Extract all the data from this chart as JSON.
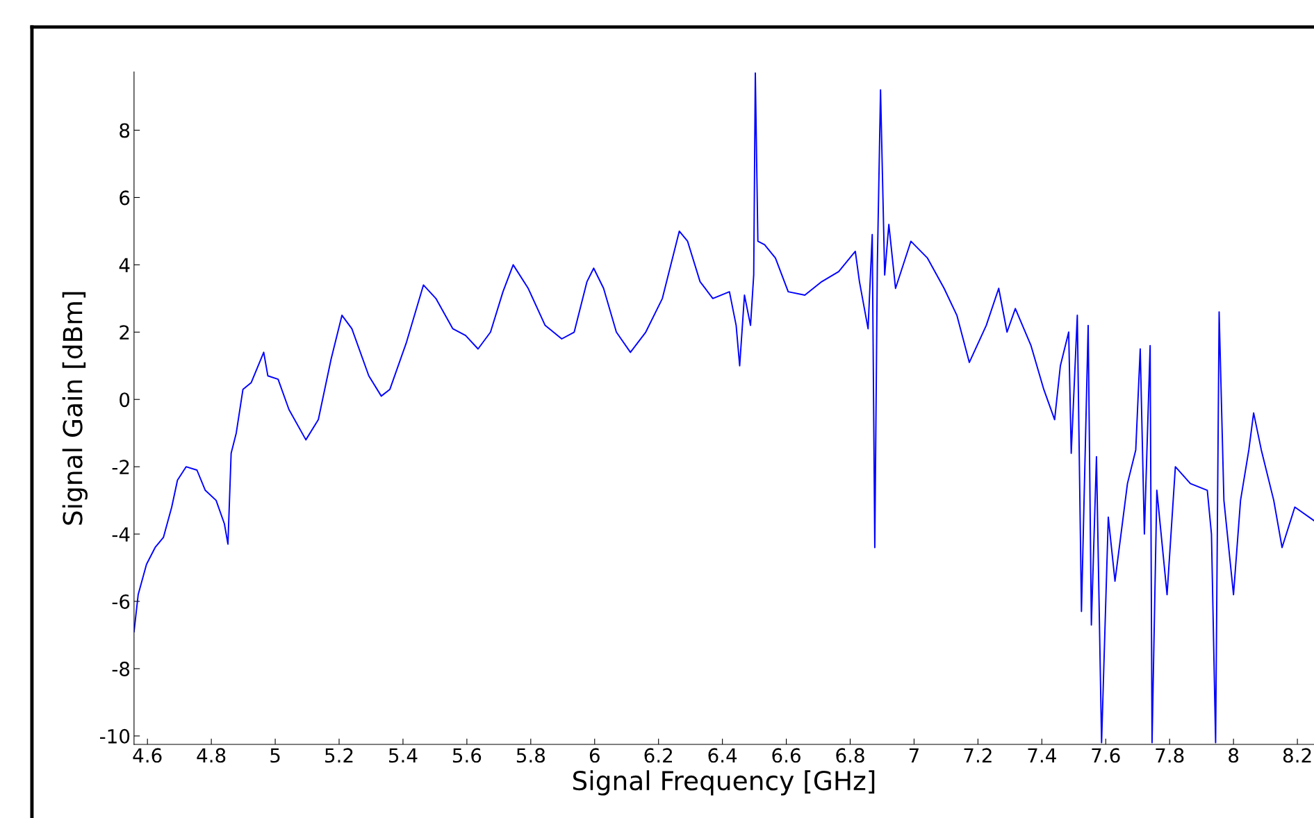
{
  "chart_data": {
    "type": "line",
    "xlabel": "Signal Frequency [GHz]",
    "ylabel": "Signal Gain [dBm]",
    "xlim": [
      4.558,
      8.252
    ],
    "ylim": [
      -10.25,
      9.73
    ],
    "xticks": [
      4.6,
      4.8,
      5,
      5.2,
      5.4,
      5.6,
      5.8,
      6,
      6.2,
      6.4,
      6.6,
      6.8,
      7,
      7.2,
      7.4,
      7.6,
      7.8,
      8,
      8.2
    ],
    "yticks": [
      -10,
      -8,
      -6,
      -4,
      -2,
      0,
      2,
      4,
      6,
      8
    ],
    "grid": false,
    "marker": "none",
    "line_style": "solid",
    "series": [
      {
        "color": "#0000ff",
        "x": [
          4.558,
          4.571,
          4.597,
          4.624,
          4.65,
          4.676,
          4.694,
          4.721,
          4.755,
          4.781,
          4.815,
          4.841,
          4.852,
          4.862,
          4.878,
          4.899,
          4.925,
          4.964,
          4.977,
          5.009,
          5.043,
          5.096,
          5.135,
          5.175,
          5.209,
          5.24,
          5.293,
          5.332,
          5.359,
          5.411,
          5.464,
          5.503,
          5.556,
          5.596,
          5.635,
          5.674,
          5.713,
          5.745,
          5.792,
          5.845,
          5.897,
          5.936,
          5.976,
          5.997,
          6.028,
          6.068,
          6.112,
          6.16,
          6.212,
          6.265,
          6.291,
          6.33,
          6.37,
          6.422,
          6.443,
          6.454,
          6.469,
          6.488,
          6.498,
          6.503,
          6.511,
          6.532,
          6.566,
          6.606,
          6.658,
          6.711,
          6.764,
          6.816,
          6.829,
          6.856,
          6.869,
          6.877,
          6.885,
          6.895,
          6.908,
          6.921,
          6.942,
          6.99,
          7.042,
          7.094,
          7.134,
          7.173,
          7.226,
          7.265,
          7.291,
          7.317,
          7.366,
          7.406,
          7.44,
          7.458,
          7.484,
          7.492,
          7.511,
          7.524,
          7.545,
          7.555,
          7.571,
          7.587,
          7.608,
          7.629,
          7.668,
          7.694,
          7.708,
          7.721,
          7.739,
          7.745,
          7.76,
          7.792,
          7.818,
          7.865,
          7.918,
          7.931,
          7.944,
          7.955,
          7.97,
          8.0,
          8.022,
          8.048,
          8.063,
          8.087,
          8.126,
          8.152,
          8.192,
          8.252
        ],
        "values": [
          -6.9,
          -5.8,
          -4.9,
          -4.4,
          -4.1,
          -3.2,
          -2.4,
          -2.0,
          -2.1,
          -2.7,
          -3.0,
          -3.7,
          -4.3,
          -1.6,
          -1.0,
          0.3,
          0.5,
          1.4,
          0.7,
          0.6,
          -0.3,
          -1.2,
          -0.6,
          1.2,
          2.5,
          2.1,
          0.7,
          0.1,
          0.3,
          1.7,
          3.4,
          3.0,
          2.1,
          1.9,
          1.5,
          2.0,
          3.2,
          4.0,
          3.3,
          2.2,
          1.8,
          2.0,
          3.5,
          3.9,
          3.3,
          2.0,
          1.4,
          2.0,
          3.0,
          5.0,
          4.7,
          3.5,
          3.0,
          3.2,
          2.2,
          1.0,
          3.1,
          2.2,
          3.7,
          9.7,
          4.7,
          4.6,
          4.2,
          3.2,
          3.1,
          3.5,
          3.8,
          4.4,
          3.5,
          2.1,
          4.9,
          -4.4,
          4.0,
          9.2,
          3.7,
          5.2,
          3.3,
          4.7,
          4.2,
          3.3,
          2.5,
          1.1,
          2.2,
          3.3,
          2.0,
          2.7,
          1.6,
          0.3,
          -0.6,
          1.0,
          2.0,
          -1.6,
          2.5,
          -6.3,
          2.2,
          -6.7,
          -1.7,
          -10.2,
          -3.5,
          -5.4,
          -2.5,
          -1.5,
          1.5,
          -4.0,
          1.6,
          -10.2,
          -2.7,
          -5.8,
          -2.0,
          -2.5,
          -2.7,
          -4.0,
          -10.2,
          2.6,
          -3.0,
          -5.8,
          -3.0,
          -1.5,
          -0.4,
          -1.5,
          -3.0,
          -4.4,
          -3.2,
          -3.6
        ]
      }
    ]
  }
}
